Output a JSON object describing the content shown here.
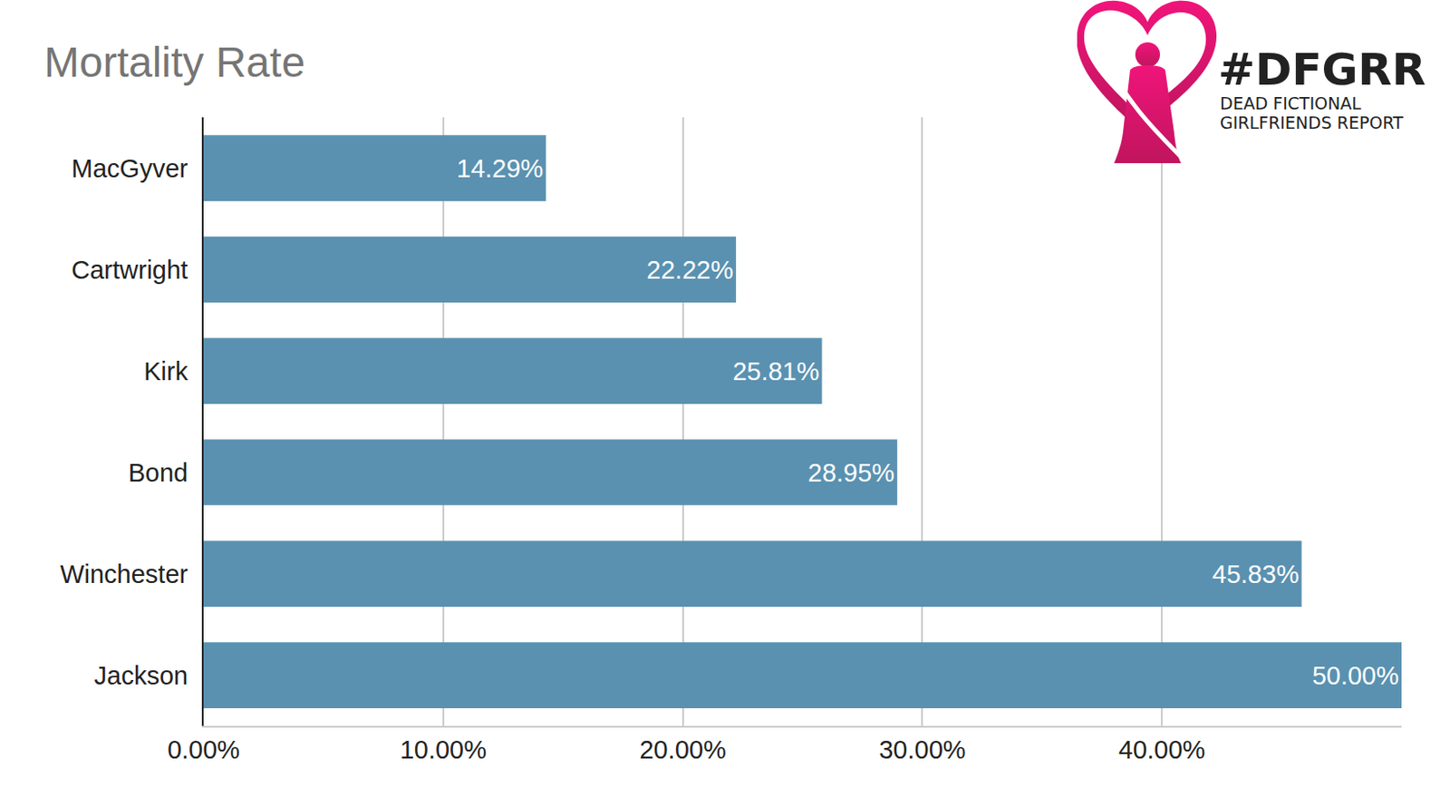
{
  "chart_data": {
    "type": "bar",
    "title": "Mortality Rate",
    "orientation": "horizontal",
    "categories": [
      "MacGyver",
      "Cartwright",
      "Kirk",
      "Bond",
      "Winchester",
      "Jackson"
    ],
    "values": [
      14.29,
      22.22,
      25.81,
      28.95,
      45.83,
      50.0
    ],
    "value_labels": [
      "14.29%",
      "22.22%",
      "25.81%",
      "28.95%",
      "45.83%",
      "50.00%"
    ],
    "data_labels": true,
    "color": "#5a91b0",
    "xlim": [
      0,
      50
    ],
    "xticks": [
      {
        "value": 0,
        "label": "0.00%"
      },
      {
        "value": 10,
        "label": "10.00%"
      },
      {
        "value": 20,
        "label": "20.00%"
      },
      {
        "value": 30,
        "label": "30.00%"
      },
      {
        "value": 40,
        "label": "40.00%"
      }
    ],
    "grid": true,
    "annotations": [
      "#DFGRR",
      "DEAD FICTIONAL",
      "GIRLFRIENDS REPORT"
    ]
  }
}
